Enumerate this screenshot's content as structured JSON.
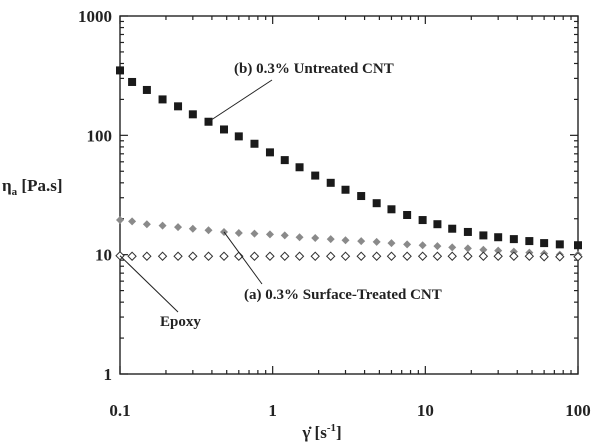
{
  "chart_data": {
    "type": "scatter",
    "x_scale": "log",
    "y_scale": "log",
    "xlim": [
      0.1,
      100
    ],
    "ylim": [
      1,
      1000
    ],
    "x_ticks": [
      "0.1",
      "1",
      "10",
      "100"
    ],
    "y_ticks": [
      "1",
      "10",
      "100",
      "1000"
    ],
    "xlabel": "γ̇ [s",
    "xlabel_sup": "-1",
    "xlabel_end": "]",
    "ylabel": "η",
    "ylabel_sub": "a",
    "ylabel_end": " [Pa.s]",
    "grid": false,
    "series": [
      {
        "name": "(b) 0.3% Untreated CNT",
        "marker": "filled-square",
        "color": "#1a1a1a",
        "x": [
          0.1,
          0.12,
          0.15,
          0.19,
          0.24,
          0.3,
          0.38,
          0.48,
          0.6,
          0.76,
          0.96,
          1.2,
          1.5,
          1.9,
          2.4,
          3.0,
          3.8,
          4.8,
          6.0,
          7.6,
          9.6,
          12,
          15,
          19,
          24,
          30,
          38,
          48,
          60,
          76,
          100
        ],
        "y": [
          350,
          280,
          240,
          200,
          175,
          150,
          130,
          112,
          98,
          85,
          72,
          62,
          54,
          46,
          40,
          35,
          31,
          27,
          24,
          21.5,
          19.5,
          18,
          16.5,
          15.5,
          14.5,
          14,
          13.5,
          13,
          12.5,
          12.2,
          12
        ]
      },
      {
        "name": "(a) 0.3% Surface-Treated CNT",
        "marker": "filled-diamond",
        "color": "#8a8a8a",
        "x": [
          0.1,
          0.12,
          0.15,
          0.19,
          0.24,
          0.3,
          0.38,
          0.48,
          0.6,
          0.76,
          0.96,
          1.2,
          1.5,
          1.9,
          2.4,
          3.0,
          3.8,
          4.8,
          6.0,
          7.6,
          9.6,
          12,
          15,
          19,
          24,
          30,
          38,
          48,
          60,
          76,
          100
        ],
        "y": [
          19.5,
          19,
          18,
          17.5,
          17,
          16.5,
          16,
          15.5,
          15.2,
          15,
          14.8,
          14.5,
          14,
          13.8,
          13.5,
          13.2,
          13,
          12.8,
          12.5,
          12.2,
          12,
          11.8,
          11.5,
          11.3,
          11,
          10.8,
          10.6,
          10.4,
          10.2,
          10,
          10
        ]
      },
      {
        "name": "Epoxy",
        "marker": "open-diamond",
        "color": "#333333",
        "x": [
          0.1,
          0.12,
          0.15,
          0.19,
          0.24,
          0.3,
          0.38,
          0.48,
          0.6,
          0.76,
          0.96,
          1.2,
          1.5,
          1.9,
          2.4,
          3.0,
          3.8,
          4.8,
          6.0,
          7.6,
          9.6,
          12,
          15,
          19,
          24,
          30,
          38,
          48,
          60,
          76,
          100
        ],
        "y": [
          9.8,
          9.7,
          9.7,
          9.7,
          9.7,
          9.7,
          9.7,
          9.7,
          9.7,
          9.7,
          9.7,
          9.7,
          9.7,
          9.7,
          9.7,
          9.7,
          9.7,
          9.7,
          9.7,
          9.7,
          9.7,
          9.7,
          9.7,
          9.7,
          9.7,
          9.7,
          9.7,
          9.7,
          9.6,
          9.6,
          9.6
        ]
      }
    ],
    "annotations": [
      {
        "text": "(b) 0.3% Untreated CNT",
        "series": 0
      },
      {
        "text": "(a) 0.3% Surface-Treated CNT",
        "series": 1
      },
      {
        "text": "Epoxy",
        "series": 2
      }
    ]
  }
}
